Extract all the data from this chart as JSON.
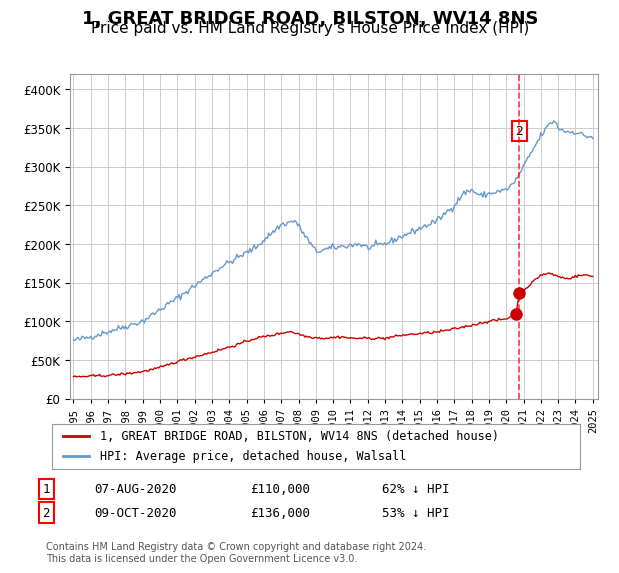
{
  "title": "1, GREAT BRIDGE ROAD, BILSTON, WV14 8NS",
  "subtitle": "Price paid vs. HM Land Registry's House Price Index (HPI)",
  "title_fontsize": 13,
  "subtitle_fontsize": 11,
  "hpi_color": "#6699cc",
  "price_color": "#cc0000",
  "background_color": "#ffffff",
  "grid_color": "#cccccc",
  "ylim": [
    0,
    420000
  ],
  "yticks": [
    0,
    50000,
    100000,
    150000,
    200000,
    250000,
    300000,
    350000,
    400000
  ],
  "sale1": {
    "date_num": 2020.58,
    "price": 110000,
    "label": "1",
    "date_str": "07-AUG-2020"
  },
  "sale2": {
    "date_num": 2020.75,
    "price": 136000,
    "label": "2",
    "date_str": "09-OCT-2020"
  },
  "annotation1_text": "1   07-AUG-2020        £110,000        62% ↓ HPI",
  "annotation2_text": "2   09-OCT-2020        £136,000        53% ↓ HPI",
  "footer": "Contains HM Land Registry data © Crown copyright and database right 2024.\nThis data is licensed under the Open Government Licence v3.0.",
  "legend1": "1, GREAT BRIDGE ROAD, BILSTON, WV14 8NS (detached house)",
  "legend2": "HPI: Average price, detached house, Walsall"
}
